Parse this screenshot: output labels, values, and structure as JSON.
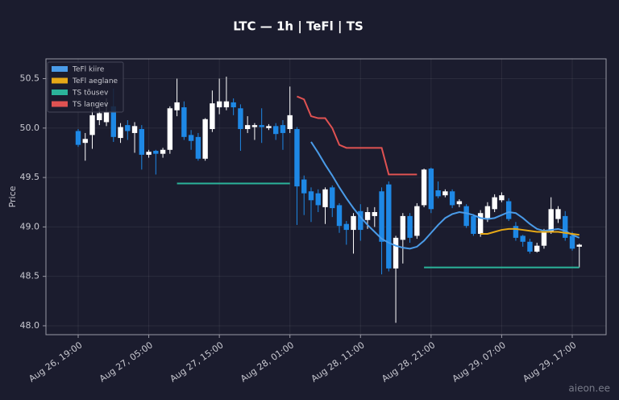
{
  "chart_data": {
    "type": "candlestick",
    "title": "LTC — 1h  |  TeFl  |  TS",
    "y_label": "Price",
    "watermark": "aieon.ee",
    "up_color": "#ffffff",
    "down_color": "#1e88e5",
    "grid": true,
    "legend": "upper left",
    "ylim": [
      47.91,
      50.7
    ],
    "yticks": [
      {
        "value": 48,
        "label": "48.0"
      },
      48.5,
      {
        "value": 49,
        "label": "49.0"
      },
      49.5,
      {
        "value": 50,
        "label": "50.0"
      },
      50.5
    ],
    "categories": [
      "Aug 26, 19:00",
      null,
      null,
      null,
      null,
      null,
      null,
      null,
      null,
      null,
      "Aug 27, 05:00",
      null,
      null,
      null,
      null,
      null,
      null,
      null,
      null,
      null,
      "Aug 27, 15:00",
      null,
      null,
      null,
      null,
      null,
      null,
      null,
      null,
      null,
      "Aug 28, 01:00",
      null,
      null,
      null,
      null,
      null,
      null,
      null,
      null,
      null,
      "Aug 28, 11:00",
      null,
      null,
      null,
      null,
      null,
      null,
      null,
      null,
      null,
      "Aug 28, 21:00",
      null,
      null,
      null,
      null,
      null,
      null,
      null,
      null,
      null,
      "Aug 29, 07:00",
      null,
      null,
      null,
      null,
      null,
      null,
      null,
      null,
      null,
      "Aug 29, 17:00",
      null
    ],
    "open": [
      49.97,
      49.85,
      49.93,
      50.08,
      50.06,
      50.22,
      49.9,
      50.03,
      49.95,
      49.99,
      49.73,
      49.77,
      49.74,
      49.78,
      50.18,
      50.21,
      49.93,
      49.91,
      49.69,
      49.99,
      50.21,
      50.21,
      50.26,
      50.2,
      49.99,
      50.01,
      50.03,
      50.0,
      50.02,
      50.03,
      49.99,
      49.99,
      49.48,
      49.36,
      49.34,
      49.2,
      49.4,
      49.22,
      49.03,
      48.97,
      49.16,
      49.07,
      49.11,
      49.36,
      49.43,
      48.58,
      48.87,
      49.11,
      48.91,
      49.22,
      49.59,
      49.37,
      49.32,
      49.36,
      49.23,
      49.21,
      49.11,
      48.93,
      49.09,
      49.18,
      49.27,
      49.26,
      49.01,
      48.91,
      48.85,
      48.75,
      48.81,
      48.95,
      49.08,
      49.11,
      48.91,
      48.8
    ],
    "high": [
      49.99,
      49.95,
      50.24,
      50.28,
      50.3,
      50.4,
      50.05,
      50.08,
      50.06,
      50.03,
      49.78,
      49.78,
      49.8,
      50.22,
      50.5,
      50.27,
      49.98,
      49.95,
      50.1,
      50.38,
      50.5,
      50.52,
      50.3,
      50.24,
      50.12,
      50.05,
      50.2,
      50.04,
      50.05,
      50.08,
      50.42,
      50.01,
      49.52,
      49.4,
      49.38,
      49.4,
      49.42,
      49.24,
      49.06,
      49.14,
      49.23,
      49.2,
      49.2,
      49.4,
      49.46,
      48.91,
      49.14,
      49.14,
      49.24,
      49.59,
      49.6,
      49.46,
      49.38,
      49.38,
      49.28,
      49.23,
      49.13,
      49.17,
      49.25,
      49.33,
      49.35,
      49.29,
      49.05,
      48.92,
      48.88,
      48.84,
      48.98,
      49.3,
      49.21,
      49.16,
      48.95,
      48.83
    ],
    "low": [
      49.81,
      49.67,
      49.79,
      50.03,
      50.02,
      49.86,
      49.85,
      49.88,
      49.75,
      49.58,
      49.7,
      49.53,
      49.7,
      49.74,
      50.12,
      49.88,
      49.78,
      49.67,
      49.67,
      49.96,
      50.14,
      50.18,
      50.13,
      49.77,
      49.95,
      49.88,
      49.85,
      49.98,
      49.88,
      49.78,
      49.95,
      49.02,
      49.12,
      49.05,
      49.15,
      49.03,
      49.1,
      48.94,
      48.82,
      48.73,
      48.86,
      48.98,
      49.0,
      48.52,
      48.55,
      48.03,
      48.63,
      48.84,
      48.88,
      49.2,
      49.14,
      49.29,
      49.3,
      49.19,
      49.2,
      48.99,
      48.91,
      48.9,
      49.05,
      49.15,
      49.25,
      49.06,
      48.86,
      48.8,
      48.73,
      48.74,
      48.78,
      48.93,
      49.04,
      48.86,
      48.76,
      48.59
    ],
    "close": [
      49.83,
      49.89,
      50.13,
      50.15,
      50.16,
      49.91,
      50.01,
      49.97,
      50.02,
      49.73,
      49.76,
      49.74,
      49.78,
      50.2,
      50.26,
      49.91,
      49.87,
      49.69,
      50.09,
      50.25,
      50.27,
      50.27,
      50.21,
      49.99,
      50.03,
      50.03,
      50.01,
      50.02,
      49.94,
      49.95,
      50.13,
      49.41,
      49.34,
      49.27,
      49.22,
      49.38,
      49.19,
      49.01,
      48.97,
      49.11,
      48.97,
      49.15,
      49.15,
      48.85,
      48.58,
      48.89,
      49.11,
      48.89,
      49.21,
      49.58,
      49.18,
      49.31,
      49.36,
      49.22,
      49.26,
      49.01,
      48.93,
      49.14,
      49.21,
      49.3,
      49.32,
      49.08,
      48.89,
      48.85,
      48.75,
      48.81,
      48.96,
      49.18,
      49.18,
      48.89,
      48.78,
      48.82
    ],
    "series": [
      {
        "name": "TeFl kiire",
        "color": "#4a9be8",
        "values": [
          null,
          null,
          null,
          null,
          null,
          null,
          null,
          null,
          null,
          null,
          null,
          null,
          null,
          null,
          null,
          null,
          null,
          null,
          null,
          null,
          null,
          null,
          null,
          null,
          null,
          null,
          null,
          null,
          null,
          null,
          null,
          null,
          null,
          49.86,
          49.75,
          49.63,
          49.52,
          49.4,
          49.29,
          49.19,
          49.1,
          49.02,
          48.95,
          48.88,
          48.84,
          48.81,
          48.79,
          48.78,
          48.8,
          48.86,
          48.94,
          49.02,
          49.09,
          49.13,
          49.15,
          49.14,
          49.12,
          49.09,
          49.08,
          49.09,
          49.12,
          49.15,
          49.14,
          49.09,
          49.03,
          48.98,
          48.96,
          48.97,
          48.98,
          48.96,
          48.92,
          48.89
        ]
      },
      {
        "name": "TeFl aeglane",
        "color": "#e6a817",
        "values": [
          null,
          null,
          null,
          null,
          null,
          null,
          null,
          null,
          null,
          null,
          null,
          null,
          null,
          null,
          null,
          null,
          null,
          null,
          null,
          null,
          null,
          null,
          null,
          null,
          null,
          null,
          null,
          null,
          null,
          null,
          null,
          null,
          null,
          null,
          null,
          null,
          null,
          null,
          null,
          null,
          null,
          null,
          null,
          null,
          null,
          null,
          null,
          null,
          null,
          null,
          null,
          null,
          null,
          null,
          null,
          null,
          null,
          48.93,
          48.93,
          48.95,
          48.97,
          48.98,
          48.98,
          48.97,
          48.96,
          48.95,
          48.95,
          48.95,
          48.95,
          48.94,
          48.93,
          48.92
        ]
      },
      {
        "name": "TS tõusev",
        "color": "#2bb39a",
        "values": [
          null,
          null,
          null,
          null,
          null,
          null,
          null,
          null,
          null,
          null,
          null,
          null,
          null,
          null,
          49.44,
          49.44,
          49.44,
          49.44,
          49.44,
          49.44,
          49.44,
          49.44,
          49.44,
          49.44,
          49.44,
          49.44,
          49.44,
          49.44,
          49.44,
          49.44,
          49.44,
          null,
          null,
          null,
          null,
          null,
          null,
          null,
          null,
          null,
          null,
          null,
          null,
          null,
          null,
          null,
          null,
          null,
          null,
          48.59,
          48.59,
          48.59,
          48.59,
          48.59,
          48.59,
          48.59,
          48.59,
          48.59,
          48.59,
          48.59,
          48.59,
          48.59,
          48.59,
          48.59,
          48.59,
          48.59,
          48.59,
          48.59,
          48.59,
          48.59,
          48.59,
          48.59
        ]
      },
      {
        "name": "TS langev",
        "color": "#e05252",
        "values": [
          null,
          null,
          null,
          null,
          null,
          null,
          null,
          null,
          null,
          null,
          null,
          null,
          null,
          null,
          null,
          null,
          null,
          null,
          null,
          null,
          null,
          null,
          null,
          null,
          null,
          null,
          null,
          null,
          null,
          null,
          null,
          50.32,
          50.29,
          50.12,
          50.1,
          50.1,
          50.0,
          49.83,
          49.8,
          49.8,
          49.8,
          49.8,
          49.8,
          49.8,
          49.53,
          49.53,
          49.53,
          49.53,
          49.53,
          null,
          null,
          null,
          null,
          null,
          null,
          null,
          null,
          null,
          null,
          null,
          null,
          null,
          null,
          null,
          null,
          null,
          null,
          null,
          null,
          null,
          null,
          null
        ]
      }
    ]
  }
}
